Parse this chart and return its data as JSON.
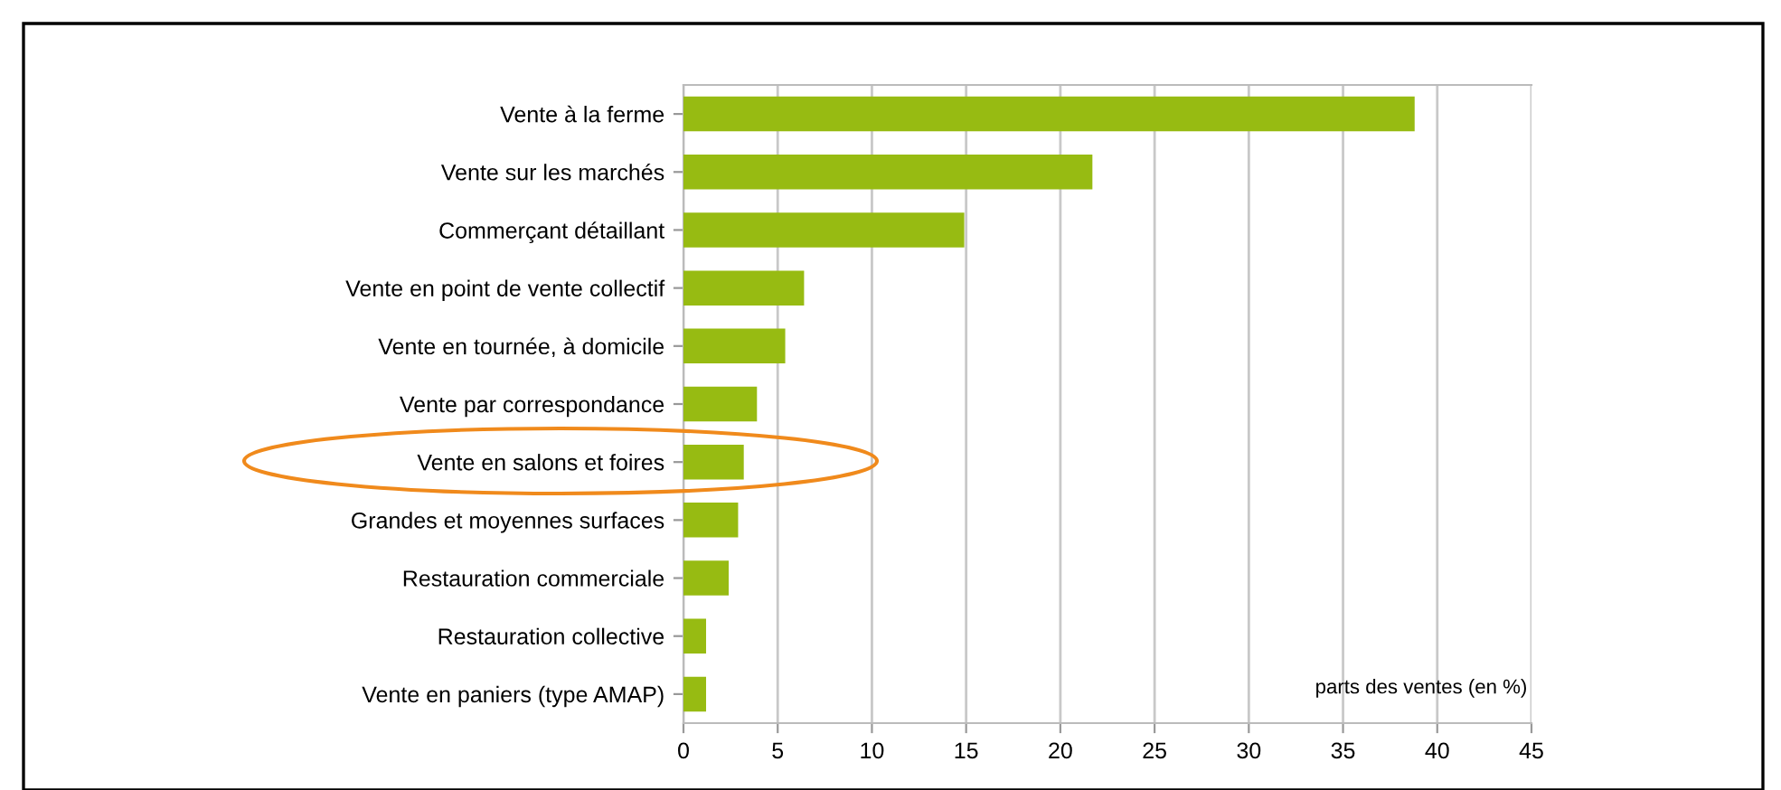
{
  "chart_data": {
    "type": "bar",
    "orientation": "horizontal",
    "xlabel": "parts des ventes (en %)",
    "categories": [
      "Vente à la ferme",
      "Vente sur les marchés",
      "Commerçant détaillant",
      "Vente en point de vente collectif",
      "Vente en tournée, à domicile",
      "Vente par correspondance",
      "Vente en salons et foires",
      "Grandes et moyennes surfaces",
      "Restauration commerciale",
      "Restauration collective",
      "Vente en paniers (type AMAP)"
    ],
    "values": [
      38.8,
      21.7,
      14.9,
      6.4,
      5.4,
      3.9,
      3.2,
      2.9,
      2.4,
      1.2,
      1.2
    ],
    "color": "#97bb12",
    "xlim": [
      0,
      45
    ],
    "xticks": [
      0,
      5,
      10,
      15,
      20,
      25,
      30,
      35,
      40,
      45
    ],
    "grid": "x"
  }
}
